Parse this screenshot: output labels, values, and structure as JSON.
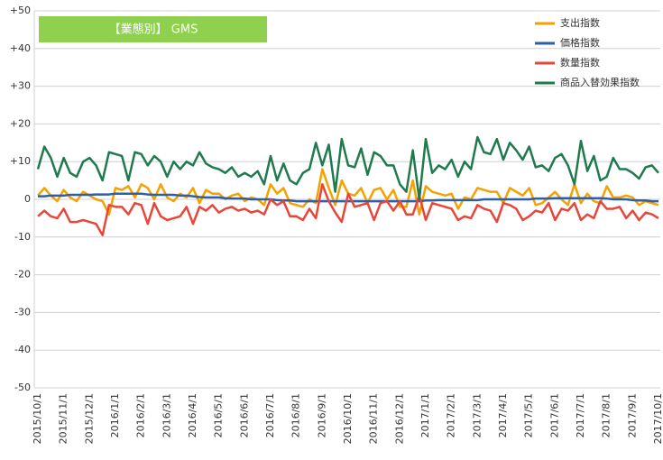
{
  "chart_data": {
    "type": "line",
    "title": "【業態別】 GMS",
    "categories": [
      "2015/10/1",
      null,
      null,
      null,
      "2015/11/1",
      null,
      null,
      null,
      "2015/12/1",
      null,
      null,
      null,
      "2016/1/1",
      null,
      null,
      null,
      "2016/2/1",
      null,
      null,
      null,
      "2016/3/1",
      null,
      null,
      null,
      "2016/4/1",
      null,
      null,
      null,
      "2016/5/1",
      null,
      null,
      null,
      "2016/6/1",
      null,
      null,
      null,
      "2016/7/1",
      null,
      null,
      null,
      "2016/8/1",
      null,
      null,
      null,
      "2016/9/1",
      null,
      null,
      null,
      "2016/10/1",
      null,
      null,
      null,
      "2016/11/1",
      null,
      null,
      null,
      "2016/12/1",
      null,
      null,
      null,
      "2017/1/1",
      null,
      null,
      null,
      "2017/2/1",
      null,
      null,
      null,
      "2017/3/1",
      null,
      null,
      null,
      "2017/4/1",
      null,
      null,
      null,
      "2017/5/1",
      null,
      null,
      null,
      "2017/6/1",
      null,
      null,
      null,
      "2017/7/1",
      null,
      null,
      null,
      "2017/8/1",
      null,
      null,
      null,
      "2017/9/1",
      null,
      null,
      null,
      "2017/10/1"
    ],
    "series": [
      {
        "name": "支出指数",
        "color": "#f5a100",
        "values": [
          1,
          3,
          1,
          -0.5,
          2.5,
          0.5,
          -0.5,
          2,
          1,
          0,
          -0.5,
          -4,
          3,
          2.5,
          3.5,
          0.5,
          4,
          3,
          0,
          4,
          0.5,
          -0.5,
          1.5,
          0.5,
          3,
          -1,
          2.5,
          1.5,
          1.5,
          0,
          1,
          1.5,
          -0.5,
          0.5,
          0,
          -1.5,
          4,
          1.5,
          3,
          -1,
          -1.5,
          -2,
          0,
          -1,
          8,
          3,
          -1.5,
          5,
          1.5,
          1,
          3,
          -1,
          2.5,
          3,
          0,
          2.5,
          -2,
          -2,
          5,
          -4,
          3.5,
          2,
          1.5,
          1,
          1.5,
          -2.5,
          0.5,
          0,
          3,
          2.5,
          2,
          2,
          -1,
          3,
          2,
          1,
          3,
          -1.5,
          -1,
          0.5,
          2,
          0,
          -1.5,
          4,
          -1,
          1.5,
          -0.5,
          -1,
          3.5,
          0.5,
          0.5,
          1,
          0.5,
          -1.5,
          -0.5,
          -1,
          -1.5
        ]
      },
      {
        "name": "価格指数",
        "color": "#2e5ea8",
        "values": [
          0.8,
          0.8,
          1,
          1,
          1,
          1.2,
          1.2,
          1.2,
          1.2,
          1.3,
          1.3,
          1.3,
          1.5,
          1.5,
          1.5,
          1.5,
          1.5,
          1.3,
          1.2,
          1.2,
          1.2,
          1.2,
          1,
          1,
          0.8,
          0.6,
          0.5,
          0.5,
          0.5,
          0.3,
          0.2,
          0.2,
          0.2,
          0,
          0,
          0,
          0,
          -0.2,
          -0.3,
          -0.3,
          -0.5,
          -0.5,
          -0.5,
          -0.5,
          -0.5,
          -0.5,
          -0.5,
          -0.5,
          -0.5,
          -0.5,
          -0.5,
          -0.5,
          -0.5,
          -0.5,
          -0.5,
          -0.5,
          -0.5,
          -0.5,
          -0.5,
          -0.5,
          -0.3,
          -0.3,
          -0.2,
          -0.2,
          -0.2,
          -0.2,
          -0.2,
          -0.2,
          -0.2,
          0,
          0,
          0,
          0,
          0,
          0,
          0,
          0,
          0.2,
          0.2,
          0.2,
          0.3,
          0.3,
          0.3,
          0.3,
          0.3,
          0.3,
          0.3,
          0.3,
          0.2,
          0,
          0,
          0,
          -0.2,
          -0.3,
          -0.3,
          -0.5,
          -0.5
        ]
      },
      {
        "name": "数量指数",
        "color": "#e8463a",
        "values": [
          -4.5,
          -3,
          -4.5,
          -5,
          -2.5,
          -6,
          -6,
          -5.5,
          -6,
          -6.5,
          -9.5,
          -1.5,
          -2,
          -2,
          -4,
          -1,
          -1.5,
          -6.5,
          -1,
          -4.5,
          -5.5,
          -5,
          -4.5,
          -2,
          -6.5,
          -2,
          -3,
          -1.5,
          -3.5,
          -2.5,
          -2,
          -3,
          -2.5,
          -3.5,
          -3,
          -4,
          0,
          -1.5,
          -0.5,
          -4.5,
          -4.5,
          -5.5,
          -2.5,
          -5,
          4,
          -0.5,
          -3.5,
          -6,
          1.5,
          -2,
          -1.5,
          -1,
          -5.5,
          -1,
          -0.5,
          -3,
          -0.5,
          -4,
          -4,
          1,
          -5.5,
          -1,
          -1.5,
          -2,
          -2.5,
          -5.5,
          -4.5,
          -5,
          -1.5,
          -2.5,
          -3,
          -6,
          -1,
          -1.5,
          -2.5,
          -5.5,
          -4.5,
          -3,
          -3.5,
          -1,
          -5.5,
          -2.5,
          -3,
          -1,
          -5.5,
          -4,
          -5,
          -0.5,
          -2.5,
          -2.5,
          -2,
          -5,
          -3,
          -5.5,
          -3.5,
          -4,
          -5
        ]
      },
      {
        "name": "商品入替効果指数",
        "color": "#1f7a4d",
        "values": [
          8,
          14,
          11,
          6,
          11,
          7,
          6,
          10,
          11,
          9,
          5,
          12.5,
          12,
          11.5,
          5,
          12.5,
          12,
          9,
          11.5,
          10,
          6,
          10,
          8,
          10,
          9,
          12.5,
          9.5,
          8.5,
          8,
          7,
          8.5,
          6,
          7,
          6,
          7.5,
          4,
          11.5,
          5,
          9.5,
          5,
          4,
          7,
          8,
          15,
          9,
          14.5,
          2,
          16,
          9,
          8.5,
          13.5,
          6.5,
          12.5,
          11.5,
          9,
          9,
          4,
          2,
          13,
          0,
          16,
          7,
          9,
          8,
          10.5,
          6,
          10,
          8,
          16.5,
          12.5,
          12,
          16,
          10.5,
          15,
          13,
          10.5,
          14,
          8.5,
          9,
          7.5,
          11,
          12,
          9,
          4,
          15.5,
          7.5,
          11.5,
          5,
          6,
          11,
          8,
          8,
          7,
          5.5,
          8.5,
          9,
          7
        ]
      }
    ],
    "ylim": [
      -50,
      50
    ],
    "yticks": [
      -50,
      -40,
      -30,
      -20,
      -10,
      0,
      {
        "value": 10,
        "label": "+10"
      },
      {
        "value": 20,
        "label": "+20"
      },
      {
        "value": 30,
        "label": "+30"
      },
      {
        "value": 40,
        "label": "+40"
      },
      {
        "value": 50,
        "label": "+50"
      }
    ],
    "grid": true,
    "legend": "top-right"
  }
}
